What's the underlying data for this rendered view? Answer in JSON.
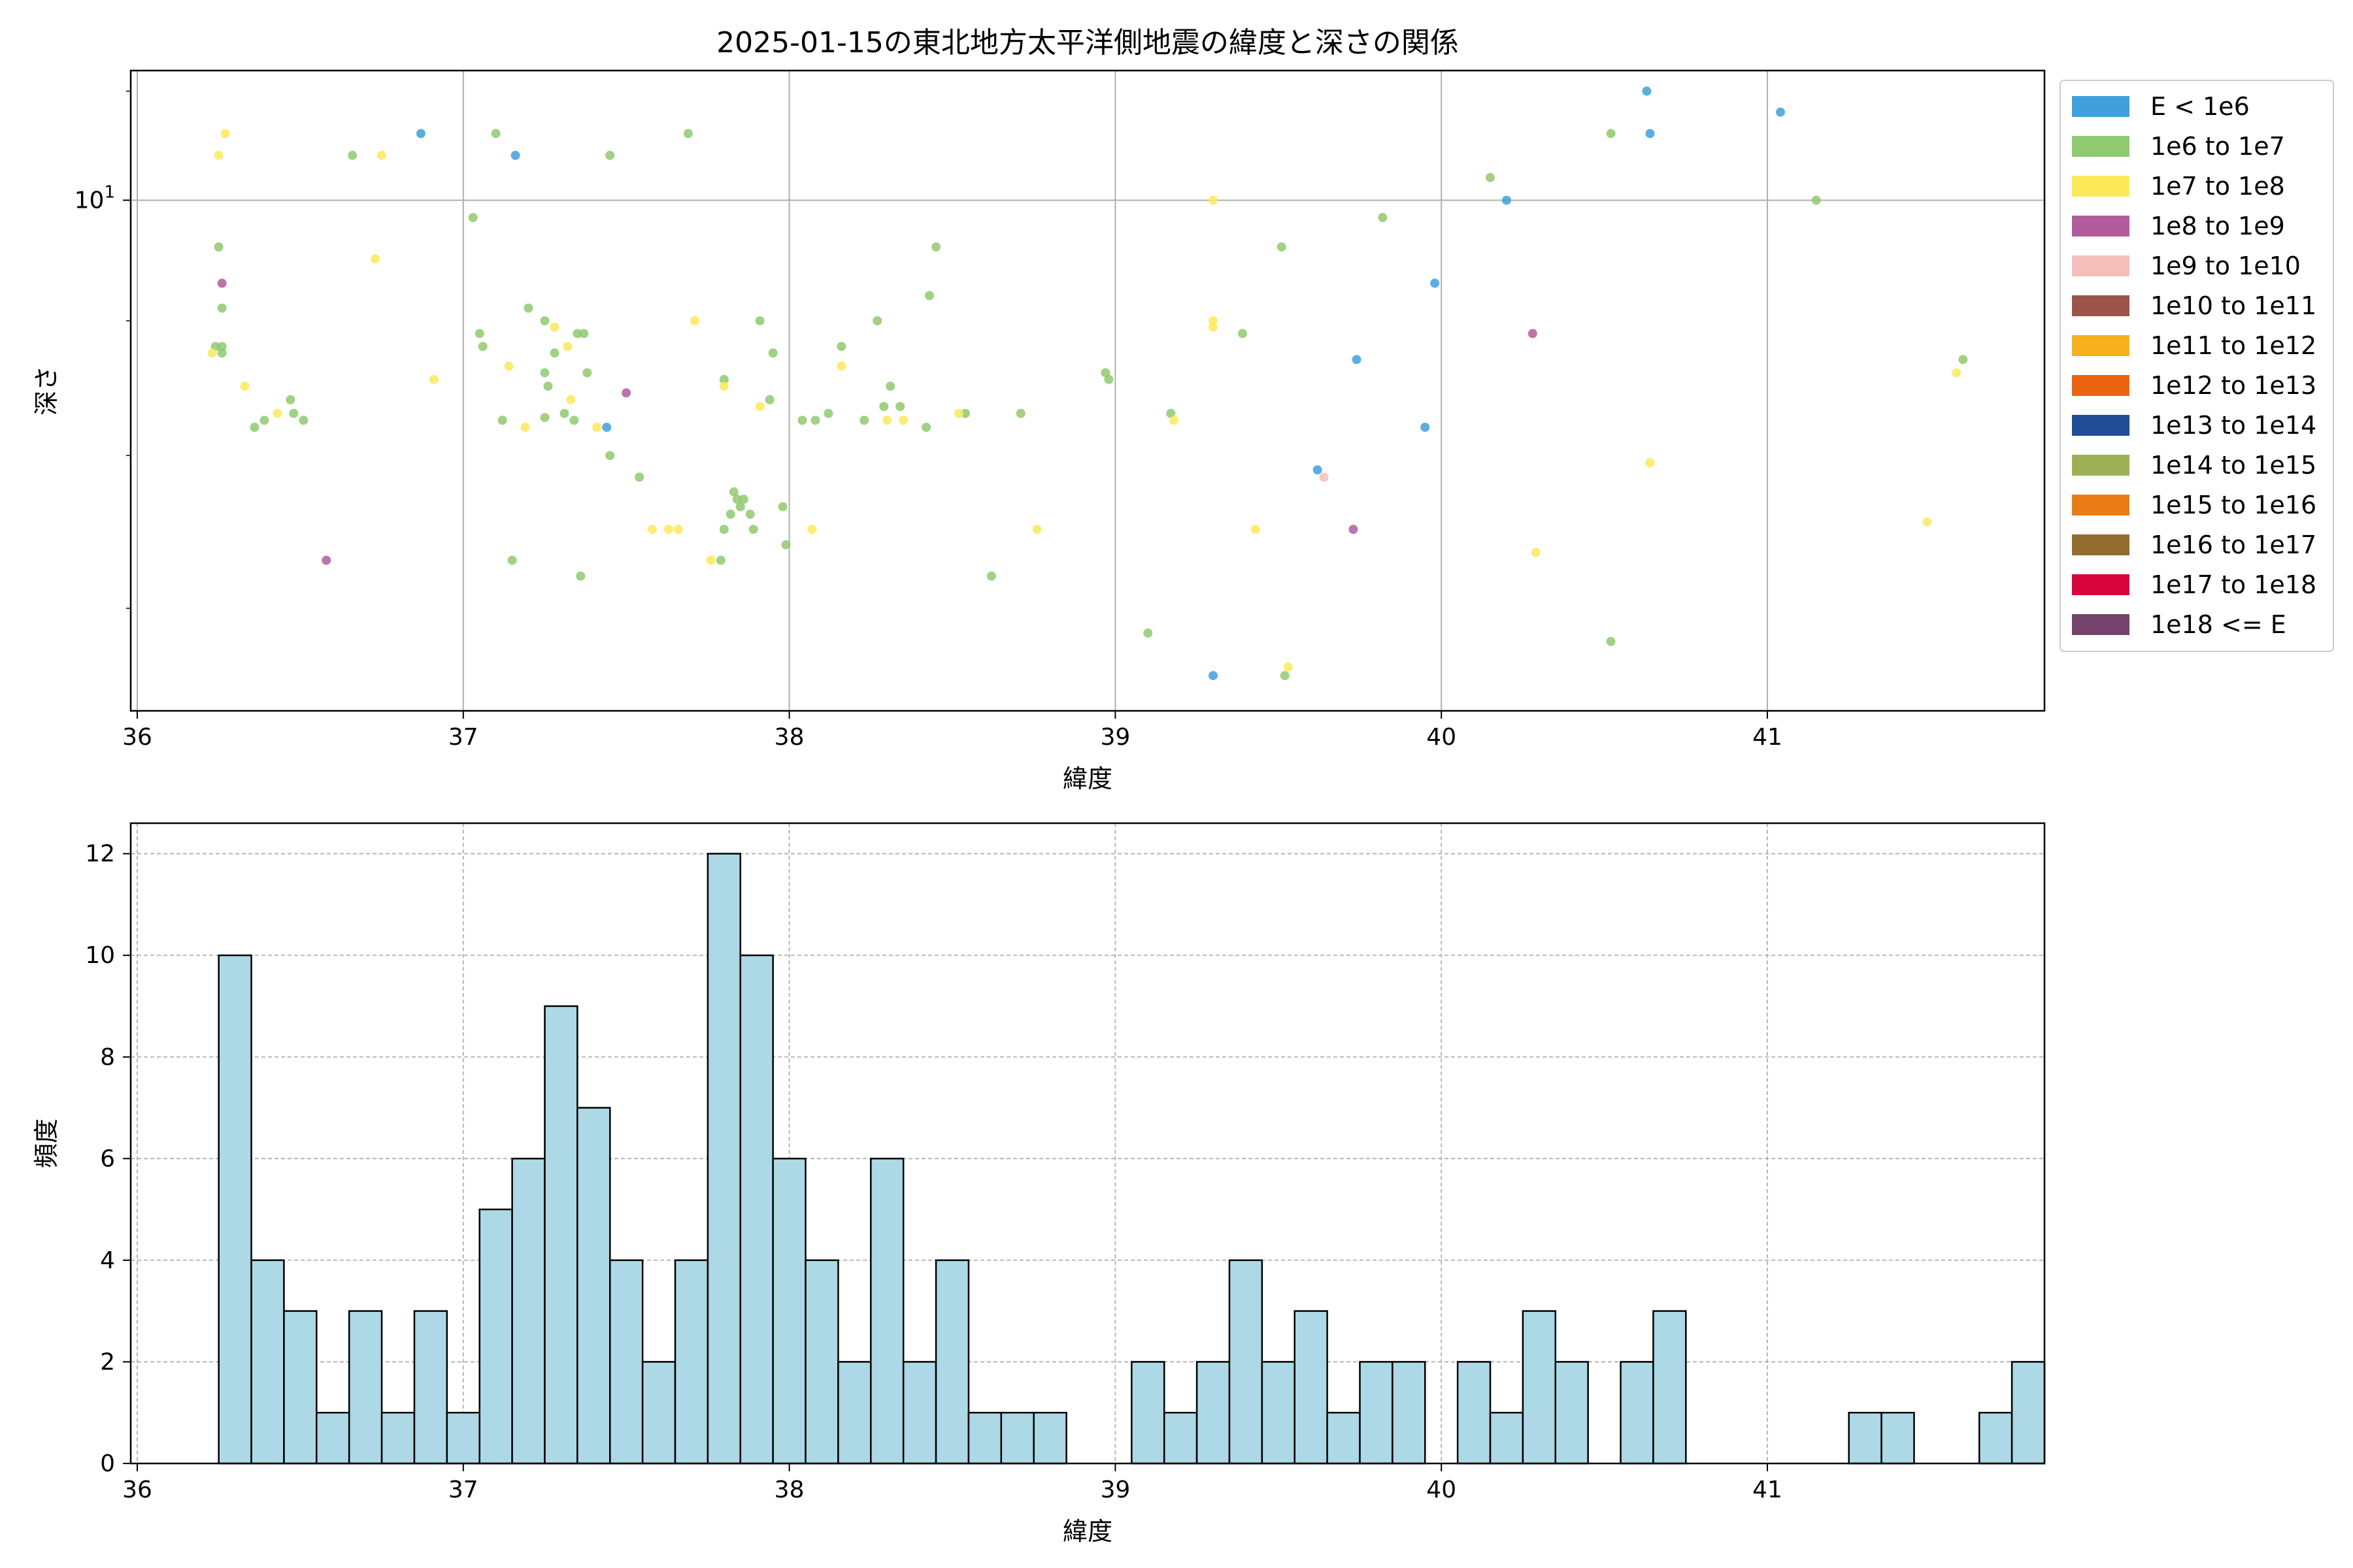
{
  "chart_data": [
    {
      "type": "scatter",
      "title": "2025-01-15の東北地方太平洋側地震の緯度と深さの関係",
      "xlabel": "緯度",
      "ylabel": "深さ",
      "xlim": [
        35.98,
        41.85
      ],
      "ylim": [
        6.4,
        11.2
      ],
      "yscale": "log",
      "x_ticks": [
        36,
        37,
        38,
        39,
        40,
        41
      ],
      "y_major_ticks": [
        {
          "value": 10,
          "base": "10",
          "exp": "1"
        }
      ],
      "y_minor_ticks": [
        7,
        8,
        9
      ],
      "grid": true,
      "legend_position": "outside-right",
      "legend": [
        {
          "label": "E < 1e6",
          "color": "#3fa0dc"
        },
        {
          "label": "1e6 to 1e7",
          "color": "#8fc970"
        },
        {
          "label": "1e7 to 1e8",
          "color": "#fbe95a"
        },
        {
          "label": "1e8 to 1e9",
          "color": "#b25c9e"
        },
        {
          "label": "1e9 to 1e10",
          "color": "#f4bfbb"
        },
        {
          "label": "1e10 to 1e11",
          "color": "#9c5349"
        },
        {
          "label": "1e11 to 1e12",
          "color": "#f6b11c"
        },
        {
          "label": "1e12 to 1e13",
          "color": "#ea6410"
        },
        {
          "label": "1e13 to 1e14",
          "color": "#1f4c95"
        },
        {
          "label": "1e14 to 1e15",
          "color": "#9eb056"
        },
        {
          "label": "1e15 to 1e16",
          "color": "#ea7c17"
        },
        {
          "label": "1e16 to 1e17",
          "color": "#936d30"
        },
        {
          "label": "1e17 to 1e18",
          "color": "#d7053b"
        },
        {
          "label": "1e18 <= E",
          "color": "#75426c"
        }
      ],
      "points": [
        {
          "x": 36.87,
          "y": 10.6,
          "c": 0
        },
        {
          "x": 37.16,
          "y": 10.4,
          "c": 0
        },
        {
          "x": 37.44,
          "y": 8.2,
          "c": 0
        },
        {
          "x": 39.3,
          "y": 6.6,
          "c": 0
        },
        {
          "x": 39.62,
          "y": 7.9,
          "c": 0
        },
        {
          "x": 39.74,
          "y": 8.7,
          "c": 0
        },
        {
          "x": 39.95,
          "y": 8.2,
          "c": 0
        },
        {
          "x": 39.98,
          "y": 9.3,
          "c": 0
        },
        {
          "x": 40.2,
          "y": 10.0,
          "c": 0
        },
        {
          "x": 40.63,
          "y": 11.0,
          "c": 0
        },
        {
          "x": 40.64,
          "y": 10.6,
          "c": 0
        },
        {
          "x": 41.04,
          "y": 10.8,
          "c": 0
        },
        {
          "x": 36.25,
          "y": 9.6,
          "c": 1
        },
        {
          "x": 36.26,
          "y": 9.1,
          "c": 1
        },
        {
          "x": 36.24,
          "y": 8.8,
          "c": 1
        },
        {
          "x": 36.26,
          "y": 8.8,
          "c": 1
        },
        {
          "x": 36.26,
          "y": 8.75,
          "c": 1
        },
        {
          "x": 36.36,
          "y": 8.2,
          "c": 1
        },
        {
          "x": 36.39,
          "y": 8.25,
          "c": 1
        },
        {
          "x": 36.47,
          "y": 8.4,
          "c": 1
        },
        {
          "x": 36.48,
          "y": 8.3,
          "c": 1
        },
        {
          "x": 36.51,
          "y": 8.25,
          "c": 1
        },
        {
          "x": 36.66,
          "y": 10.4,
          "c": 1
        },
        {
          "x": 37.03,
          "y": 9.85,
          "c": 1
        },
        {
          "x": 37.1,
          "y": 10.6,
          "c": 1
        },
        {
          "x": 37.05,
          "y": 8.9,
          "c": 1
        },
        {
          "x": 37.06,
          "y": 8.8,
          "c": 1
        },
        {
          "x": 37.12,
          "y": 8.25,
          "c": 1
        },
        {
          "x": 37.2,
          "y": 9.1,
          "c": 1
        },
        {
          "x": 37.25,
          "y": 9.0,
          "c": 1
        },
        {
          "x": 37.25,
          "y": 8.6,
          "c": 1
        },
        {
          "x": 37.26,
          "y": 8.5,
          "c": 1
        },
        {
          "x": 37.28,
          "y": 8.75,
          "c": 1
        },
        {
          "x": 37.34,
          "y": 8.25,
          "c": 1
        },
        {
          "x": 37.31,
          "y": 8.3,
          "c": 1
        },
        {
          "x": 37.35,
          "y": 8.9,
          "c": 1
        },
        {
          "x": 37.37,
          "y": 8.9,
          "c": 1
        },
        {
          "x": 37.38,
          "y": 8.6,
          "c": 1
        },
        {
          "x": 37.25,
          "y": 8.27,
          "c": 1
        },
        {
          "x": 37.45,
          "y": 10.4,
          "c": 1
        },
        {
          "x": 37.45,
          "y": 8.0,
          "c": 1
        },
        {
          "x": 37.54,
          "y": 7.85,
          "c": 1
        },
        {
          "x": 37.15,
          "y": 7.3,
          "c": 1
        },
        {
          "x": 37.36,
          "y": 7.2,
          "c": 1
        },
        {
          "x": 37.69,
          "y": 10.6,
          "c": 1
        },
        {
          "x": 37.79,
          "y": 7.3,
          "c": 1
        },
        {
          "x": 37.8,
          "y": 7.5,
          "c": 1
        },
        {
          "x": 37.82,
          "y": 7.6,
          "c": 1
        },
        {
          "x": 37.83,
          "y": 7.75,
          "c": 1
        },
        {
          "x": 37.84,
          "y": 7.7,
          "c": 1
        },
        {
          "x": 37.85,
          "y": 7.65,
          "c": 1
        },
        {
          "x": 37.88,
          "y": 7.6,
          "c": 1
        },
        {
          "x": 37.89,
          "y": 7.5,
          "c": 1
        },
        {
          "x": 37.86,
          "y": 7.7,
          "c": 1
        },
        {
          "x": 37.8,
          "y": 8.55,
          "c": 1
        },
        {
          "x": 37.91,
          "y": 9.0,
          "c": 1
        },
        {
          "x": 37.94,
          "y": 8.4,
          "c": 1
        },
        {
          "x": 37.95,
          "y": 8.75,
          "c": 1
        },
        {
          "x": 37.98,
          "y": 7.65,
          "c": 1
        },
        {
          "x": 37.99,
          "y": 7.4,
          "c": 1
        },
        {
          "x": 38.04,
          "y": 8.25,
          "c": 1
        },
        {
          "x": 38.08,
          "y": 8.25,
          "c": 1
        },
        {
          "x": 38.12,
          "y": 8.3,
          "c": 1
        },
        {
          "x": 38.16,
          "y": 8.8,
          "c": 1
        },
        {
          "x": 38.23,
          "y": 8.25,
          "c": 1
        },
        {
          "x": 38.27,
          "y": 9.0,
          "c": 1
        },
        {
          "x": 38.29,
          "y": 8.35,
          "c": 1
        },
        {
          "x": 38.31,
          "y": 8.5,
          "c": 1
        },
        {
          "x": 38.34,
          "y": 8.35,
          "c": 1
        },
        {
          "x": 38.42,
          "y": 8.2,
          "c": 1
        },
        {
          "x": 38.43,
          "y": 9.2,
          "c": 1
        },
        {
          "x": 38.45,
          "y": 9.6,
          "c": 1
        },
        {
          "x": 38.54,
          "y": 8.3,
          "c": 1
        },
        {
          "x": 38.62,
          "y": 7.2,
          "c": 1
        },
        {
          "x": 38.71,
          "y": 8.3,
          "c": 1
        },
        {
          "x": 38.97,
          "y": 8.6,
          "c": 1
        },
        {
          "x": 38.98,
          "y": 8.55,
          "c": 1
        },
        {
          "x": 39.1,
          "y": 6.85,
          "c": 1
        },
        {
          "x": 39.17,
          "y": 8.3,
          "c": 1
        },
        {
          "x": 39.39,
          "y": 8.9,
          "c": 1
        },
        {
          "x": 39.51,
          "y": 9.6,
          "c": 1
        },
        {
          "x": 39.52,
          "y": 6.6,
          "c": 1
        },
        {
          "x": 39.82,
          "y": 9.85,
          "c": 1
        },
        {
          "x": 40.15,
          "y": 10.2,
          "c": 1
        },
        {
          "x": 40.52,
          "y": 10.6,
          "c": 1
        },
        {
          "x": 40.52,
          "y": 6.8,
          "c": 1
        },
        {
          "x": 41.15,
          "y": 10.0,
          "c": 1
        },
        {
          "x": 41.6,
          "y": 8.7,
          "c": 1
        },
        {
          "x": 36.25,
          "y": 10.4,
          "c": 2
        },
        {
          "x": 36.27,
          "y": 10.6,
          "c": 2
        },
        {
          "x": 36.23,
          "y": 8.75,
          "c": 2
        },
        {
          "x": 36.33,
          "y": 8.5,
          "c": 2
        },
        {
          "x": 36.43,
          "y": 8.3,
          "c": 2
        },
        {
          "x": 36.73,
          "y": 9.5,
          "c": 2
        },
        {
          "x": 36.75,
          "y": 10.4,
          "c": 2
        },
        {
          "x": 36.91,
          "y": 8.55,
          "c": 2
        },
        {
          "x": 37.14,
          "y": 8.65,
          "c": 2
        },
        {
          "x": 37.19,
          "y": 8.2,
          "c": 2
        },
        {
          "x": 37.28,
          "y": 8.95,
          "c": 2
        },
        {
          "x": 37.32,
          "y": 8.8,
          "c": 2
        },
        {
          "x": 37.33,
          "y": 8.4,
          "c": 2
        },
        {
          "x": 37.41,
          "y": 8.2,
          "c": 2
        },
        {
          "x": 37.58,
          "y": 7.5,
          "c": 2
        },
        {
          "x": 37.63,
          "y": 7.5,
          "c": 2
        },
        {
          "x": 37.66,
          "y": 7.5,
          "c": 2
        },
        {
          "x": 37.71,
          "y": 9.0,
          "c": 2
        },
        {
          "x": 37.76,
          "y": 7.3,
          "c": 2
        },
        {
          "x": 37.8,
          "y": 8.5,
          "c": 2
        },
        {
          "x": 37.91,
          "y": 8.35,
          "c": 2
        },
        {
          "x": 38.07,
          "y": 7.5,
          "c": 2
        },
        {
          "x": 38.16,
          "y": 8.65,
          "c": 2
        },
        {
          "x": 38.3,
          "y": 8.25,
          "c": 2
        },
        {
          "x": 38.35,
          "y": 8.25,
          "c": 2
        },
        {
          "x": 38.52,
          "y": 8.3,
          "c": 2
        },
        {
          "x": 38.76,
          "y": 7.5,
          "c": 2
        },
        {
          "x": 39.18,
          "y": 8.25,
          "c": 2
        },
        {
          "x": 39.3,
          "y": 10.0,
          "c": 2
        },
        {
          "x": 39.3,
          "y": 9.0,
          "c": 2
        },
        {
          "x": 39.3,
          "y": 8.95,
          "c": 2
        },
        {
          "x": 39.43,
          "y": 7.5,
          "c": 2
        },
        {
          "x": 39.53,
          "y": 6.65,
          "c": 2
        },
        {
          "x": 40.29,
          "y": 7.35,
          "c": 2
        },
        {
          "x": 40.64,
          "y": 7.95,
          "c": 2
        },
        {
          "x": 41.49,
          "y": 7.55,
          "c": 2
        },
        {
          "x": 41.58,
          "y": 8.6,
          "c": 2
        },
        {
          "x": 36.26,
          "y": 9.3,
          "c": 3
        },
        {
          "x": 36.58,
          "y": 7.3,
          "c": 3
        },
        {
          "x": 37.5,
          "y": 8.45,
          "c": 3
        },
        {
          "x": 39.73,
          "y": 7.5,
          "c": 3
        },
        {
          "x": 40.28,
          "y": 8.9,
          "c": 3
        },
        {
          "x": 39.64,
          "y": 7.85,
          "c": 4
        }
      ]
    },
    {
      "type": "bar",
      "xlabel": "緯度",
      "ylabel": "頻度",
      "xlim": [
        35.98,
        41.85
      ],
      "ylim": [
        0,
        12.6
      ],
      "x_ticks": [
        36,
        37,
        38,
        39,
        40,
        41
      ],
      "y_ticks": [
        0,
        2,
        4,
        6,
        8,
        10,
        12
      ],
      "grid": true,
      "bar_color": "#add8e6",
      "edge_color": "#000000",
      "bin_start": 36.25,
      "bin_width": 0.1,
      "values": [
        10,
        4,
        3,
        1,
        3,
        1,
        3,
        1,
        5,
        6,
        9,
        7,
        4,
        2,
        4,
        12,
        10,
        6,
        4,
        2,
        6,
        2,
        4,
        1,
        1,
        1,
        0,
        0,
        2,
        1,
        2,
        4,
        2,
        3,
        1,
        2,
        2,
        0,
        2,
        1,
        3,
        2,
        0,
        2,
        3,
        0,
        0,
        0,
        0,
        0,
        1,
        1,
        0,
        0,
        1,
        2
      ]
    }
  ]
}
